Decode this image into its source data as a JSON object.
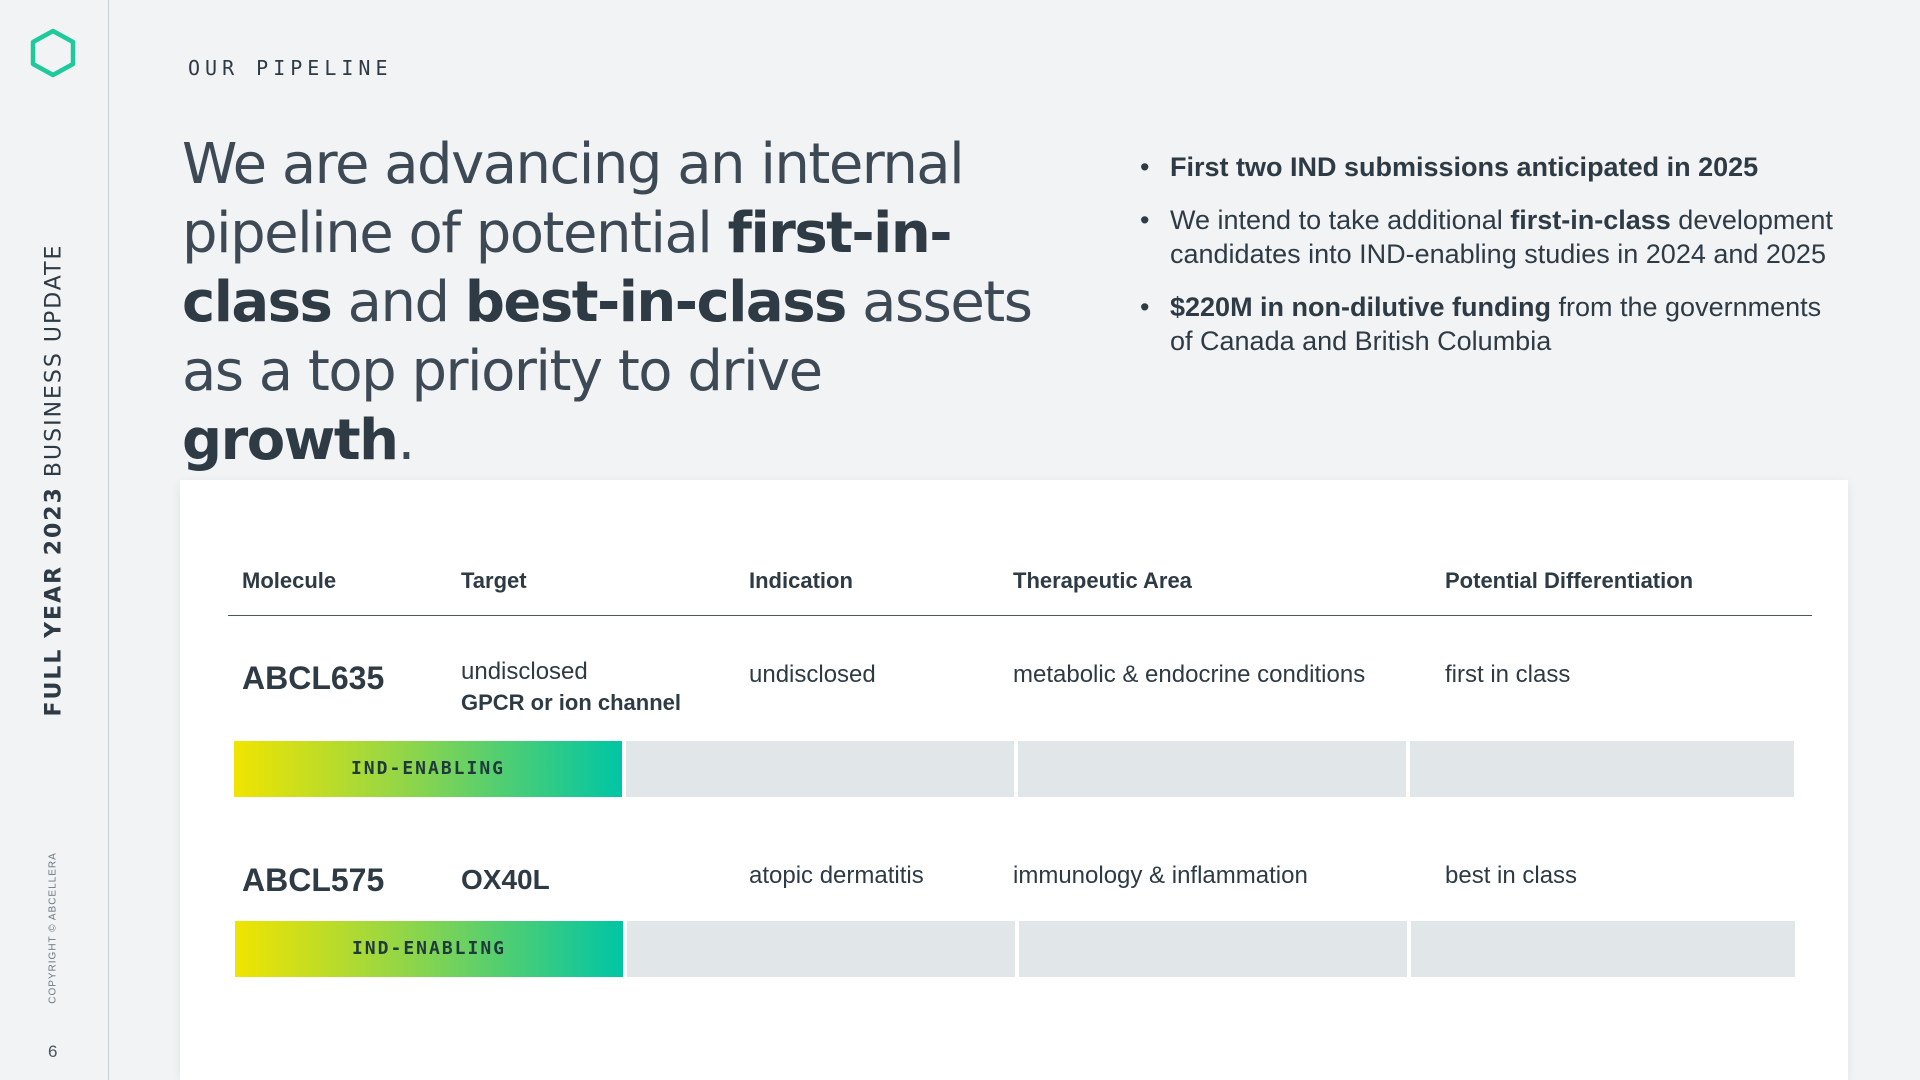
{
  "sidebar": {
    "title_bold": "FULL YEAR 2023",
    "title_light": "BUSINESS UPDATE",
    "copyright": "COPYRIGHT © ABCELLERA",
    "page_number": "6"
  },
  "header": {
    "section_label": "OUR PIPELINE",
    "headline": [
      {
        "text": "We are advancing an internal pipeline of potential ",
        "bold": false
      },
      {
        "text": "first-in-class",
        "bold": true
      },
      {
        "text": " and ",
        "bold": false
      },
      {
        "text": "best-in-class",
        "bold": true
      },
      {
        "text": " assets as a top priority to drive ",
        "bold": false
      },
      {
        "text": "growth",
        "bold": true
      },
      {
        "text": ".",
        "bold": false
      }
    ]
  },
  "bullets": [
    [
      {
        "text": "First two IND submissions anticipated in 2025",
        "bold": true
      }
    ],
    [
      {
        "text": "We intend to take additional ",
        "bold": false
      },
      {
        "text": "first-in-class",
        "bold": true
      },
      {
        "text": " development candidates into IND-enabling studies in 2024 and 2025",
        "bold": false
      }
    ],
    [
      {
        "text": "$220M in non-dilutive funding",
        "bold": true
      },
      {
        "text": " from the governments of Canada and British Columbia",
        "bold": false
      }
    ]
  ],
  "table": {
    "headers": {
      "molecule": "Molecule",
      "target": "Target",
      "indication": "Indication",
      "therapeutic_area": "Therapeutic Area",
      "differentiation": "Potential Differentiation"
    },
    "rows": [
      {
        "molecule": "ABCL635",
        "target": "undisclosed",
        "target_detail": "GPCR or ion channel",
        "indication": "undisclosed",
        "therapeutic_area": "metabolic & endocrine conditions",
        "differentiation": "first in class",
        "stage": "IND-ENABLING",
        "stage_index": 1
      },
      {
        "molecule": "ABCL575",
        "target": "OX40L",
        "indication": "atopic dermatitis",
        "therapeutic_area": "immunology & inflammation",
        "differentiation": "best in class",
        "stage": "IND-ENABLING",
        "stage_index": 1
      }
    ]
  },
  "colors": {
    "accent": "#1ec99b",
    "text": "#2e3a44",
    "stage_gradient_start": "#f0e400",
    "stage_gradient_end": "#00c5a5",
    "stage_inactive": "#e1e6e8"
  }
}
